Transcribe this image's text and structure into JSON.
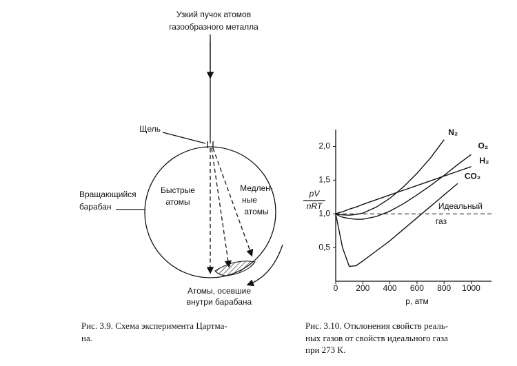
{
  "figure_left": {
    "beam_label": [
      "Узкий пучок атомов",
      "газообразного металла"
    ],
    "slit_label": "Щель",
    "drum_label": [
      "Вращающийся",
      "барабан"
    ],
    "fast_label": [
      "Быстрые",
      "атомы"
    ],
    "slow_label": [
      "Медлен-",
      "ные",
      "атомы"
    ],
    "deposit_label": [
      "Атомы, осевшие",
      "внутри барабана"
    ],
    "caption": [
      "Рис. 3.9. Схема эксперимента Цартма-",
      "на."
    ]
  },
  "chart_data": {
    "type": "line",
    "ylabel": [
      "pV",
      "nRT"
    ],
    "xlabel": "p, атм",
    "x": [
      0,
      25,
      50,
      100,
      150,
      200,
      300,
      400,
      500,
      600,
      700,
      800,
      900,
      1000
    ],
    "series": [
      {
        "name": "N₂",
        "color": "#111111",
        "values": [
          1,
          0.99,
          0.985,
          0.98,
          0.99,
          1.01,
          1.1,
          1.23,
          1.4,
          1.6,
          1.83,
          2.1,
          null,
          null
        ]
      },
      {
        "name": "O₂",
        "color": "#111111",
        "values": [
          1,
          0.97,
          0.95,
          0.93,
          0.92,
          0.92,
          0.96,
          1.04,
          1.15,
          1.28,
          1.42,
          1.57,
          1.73,
          1.88
        ]
      },
      {
        "name": "H₂",
        "color": "#111111",
        "values": [
          1,
          1.02,
          1.03,
          1.07,
          1.1,
          1.14,
          1.21,
          1.28,
          1.35,
          1.42,
          1.49,
          1.56,
          1.63,
          1.7
        ]
      },
      {
        "name": "CO₂",
        "color": "#111111",
        "values": [
          1,
          0.75,
          0.5,
          0.22,
          0.23,
          0.3,
          0.45,
          0.6,
          0.77,
          0.94,
          1.11,
          1.28,
          1.45,
          null
        ]
      }
    ],
    "ideal_line": 1,
    "ideal_label": [
      "Идеальный",
      "газ"
    ],
    "xlim": [
      0,
      1150
    ],
    "ylim": [
      0,
      2.25
    ],
    "xticks": [
      0,
      200,
      400,
      600,
      800,
      1000
    ],
    "yticks": [
      {
        "value": 0.5,
        "label": "0,5"
      },
      {
        "value": 1,
        "label": "1,0"
      },
      {
        "value": 1.5,
        "label": "1,5"
      },
      {
        "value": 2,
        "label": "2,0"
      }
    ],
    "caption": [
      "Рис. 3.10. Отклонения свойств реаль-",
      "ных газов от свойств идеального газа",
      "при 273 К."
    ]
  }
}
